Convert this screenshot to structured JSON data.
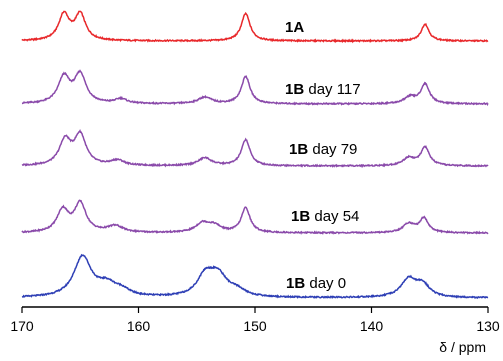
{
  "chart_data": {
    "type": "line",
    "title": "",
    "xlabel": "δ / ppm",
    "ylabel": "",
    "xlim": [
      170,
      130
    ],
    "x_reversed": true,
    "x_ticks": [
      170,
      160,
      150,
      140,
      130
    ],
    "x_tick_labels": [
      "170",
      "160",
      "150",
      "140",
      "130"
    ],
    "grid": false,
    "series": [
      {
        "name_bold": "1A",
        "name_rest": "",
        "color": "#e8282b",
        "peaks": [
          {
            "x": 166.4,
            "h": 1.0,
            "w": 0.55
          },
          {
            "x": 165.0,
            "h": 1.0,
            "w": 0.55
          },
          {
            "x": 150.8,
            "h": 1.05,
            "w": 0.45
          },
          {
            "x": 135.4,
            "h": 0.65,
            "w": 0.4
          }
        ]
      },
      {
        "name_bold": "1B",
        "name_rest": " day 117",
        "color": "#8a4aaa",
        "peaks": [
          {
            "x": 166.4,
            "h": 1.0,
            "w": 0.6
          },
          {
            "x": 165.0,
            "h": 1.1,
            "w": 0.6
          },
          {
            "x": 161.5,
            "h": 0.18,
            "w": 0.6
          },
          {
            "x": 154.3,
            "h": 0.25,
            "w": 0.7
          },
          {
            "x": 150.8,
            "h": 1.05,
            "w": 0.45
          },
          {
            "x": 136.7,
            "h": 0.25,
            "w": 0.6
          },
          {
            "x": 135.4,
            "h": 0.75,
            "w": 0.45
          }
        ]
      },
      {
        "name_bold": "1B",
        "name_rest": " day 79",
        "color": "#8a4aaa",
        "peaks": [
          {
            "x": 166.3,
            "h": 0.95,
            "w": 0.6
          },
          {
            "x": 165.0,
            "h": 1.15,
            "w": 0.6
          },
          {
            "x": 161.8,
            "h": 0.2,
            "w": 0.7
          },
          {
            "x": 154.3,
            "h": 0.3,
            "w": 0.7
          },
          {
            "x": 150.8,
            "h": 1.0,
            "w": 0.45
          },
          {
            "x": 136.8,
            "h": 0.3,
            "w": 0.6
          },
          {
            "x": 135.4,
            "h": 0.7,
            "w": 0.45
          }
        ]
      },
      {
        "name_bold": "1B",
        "name_rest": " day 54",
        "color": "#8a4aaa",
        "peaks": [
          {
            "x": 166.5,
            "h": 0.85,
            "w": 0.6
          },
          {
            "x": 165.0,
            "h": 1.1,
            "w": 0.6
          },
          {
            "x": 162.0,
            "h": 0.25,
            "w": 0.8
          },
          {
            "x": 154.5,
            "h": 0.35,
            "w": 0.7
          },
          {
            "x": 153.5,
            "h": 0.25,
            "w": 0.7
          },
          {
            "x": 150.8,
            "h": 0.95,
            "w": 0.45
          },
          {
            "x": 136.8,
            "h": 0.35,
            "w": 0.6
          },
          {
            "x": 135.5,
            "h": 0.55,
            "w": 0.45
          }
        ]
      },
      {
        "name_bold": "1B",
        "name_rest": " day 0",
        "color": "#2e3fb5",
        "peaks": [
          {
            "x": 164.8,
            "h": 1.55,
            "w": 0.9
          },
          {
            "x": 162.7,
            "h": 0.45,
            "w": 1.0
          },
          {
            "x": 161.4,
            "h": 0.2,
            "w": 0.8
          },
          {
            "x": 154.3,
            "h": 0.7,
            "w": 0.8
          },
          {
            "x": 153.2,
            "h": 0.85,
            "w": 1.0
          },
          {
            "x": 151.5,
            "h": 0.2,
            "w": 0.8
          },
          {
            "x": 136.8,
            "h": 0.7,
            "w": 0.8
          },
          {
            "x": 135.6,
            "h": 0.45,
            "w": 0.7
          }
        ]
      }
    ]
  }
}
